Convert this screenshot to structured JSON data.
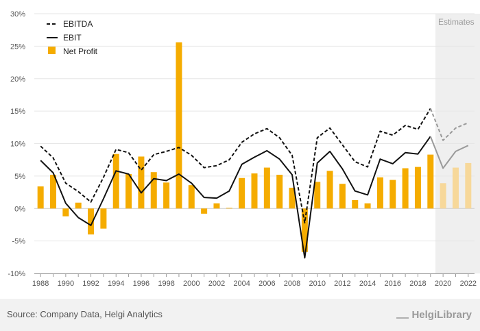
{
  "chart_data": {
    "type": "bar",
    "x": [
      1988,
      1989,
      1990,
      1991,
      1992,
      1993,
      1994,
      1995,
      1996,
      1997,
      1998,
      1999,
      2000,
      2001,
      2002,
      2003,
      2004,
      2005,
      2006,
      2007,
      2008,
      2009,
      2010,
      2011,
      2012,
      2013,
      2014,
      2015,
      2016,
      2017,
      2018,
      2019,
      2020,
      2021,
      2022
    ],
    "xtick_labels": [
      "1988",
      "1990",
      "1992",
      "1994",
      "1996",
      "1998",
      "2000",
      "2002",
      "2004",
      "2006",
      "2008",
      "2010",
      "2012",
      "2014",
      "2016",
      "2018",
      "2020",
      "2022"
    ],
    "ytick_labels": [
      "30%",
      "25%",
      "20%",
      "15%",
      "10%",
      "5%",
      "0%",
      "-5%",
      "-10%"
    ],
    "ylim": [
      -10,
      30
    ],
    "estimates_from": 2020,
    "estimates_label": "Estimates",
    "series": [
      {
        "name": "EBITDA",
        "style": "dashed",
        "color": "#111111",
        "values": [
          9.6,
          7.8,
          3.9,
          2.6,
          1.0,
          4.8,
          9.1,
          8.6,
          5.9,
          8.3,
          8.8,
          9.4,
          8.2,
          6.3,
          6.6,
          7.5,
          10.2,
          11.5,
          12.3,
          10.9,
          8.2,
          -2.2,
          10.9,
          12.4,
          9.8,
          7.2,
          6.4,
          11.9,
          11.3,
          12.8,
          12.2,
          15.4,
          10.5,
          12.4,
          13.2
        ]
      },
      {
        "name": "EBIT",
        "style": "solid",
        "color": "#111111",
        "values": [
          7.4,
          5.5,
          0.8,
          -1.4,
          -2.6,
          1.5,
          5.8,
          5.3,
          2.4,
          4.6,
          4.3,
          5.3,
          3.9,
          1.7,
          1.6,
          2.7,
          6.8,
          7.9,
          8.9,
          7.6,
          5.2,
          -7.6,
          7.0,
          8.8,
          6.1,
          2.7,
          2.1,
          7.6,
          6.9,
          8.6,
          8.4,
          11.1,
          6.2,
          8.8,
          9.7
        ]
      },
      {
        "name": "Net Profit",
        "style": "bar",
        "color": "#f5ac00",
        "values": [
          3.4,
          5.2,
          -1.2,
          0.9,
          -4.0,
          -3.1,
          8.4,
          5.3,
          8.0,
          5.6,
          4.0,
          25.6,
          3.6,
          -0.8,
          0.8,
          0.1,
          4.7,
          5.4,
          6.3,
          5.2,
          3.2,
          -6.7,
          4.1,
          5.8,
          3.8,
          1.3,
          0.8,
          4.8,
          4.4,
          6.2,
          6.4,
          8.3,
          3.9,
          6.3,
          7.0
        ]
      }
    ],
    "colors": {
      "bar": "#f5ac00",
      "bar_estimate": "#f7d89a",
      "line_estimate": "#9a9a9a",
      "estimate_band": "#efefef",
      "grid": "#e6e6e6"
    },
    "grid": true,
    "legend": "top-left"
  },
  "footer": {
    "source": "Source: Company Data, Helgi Analytics",
    "brand": "HelgiLibrary"
  }
}
